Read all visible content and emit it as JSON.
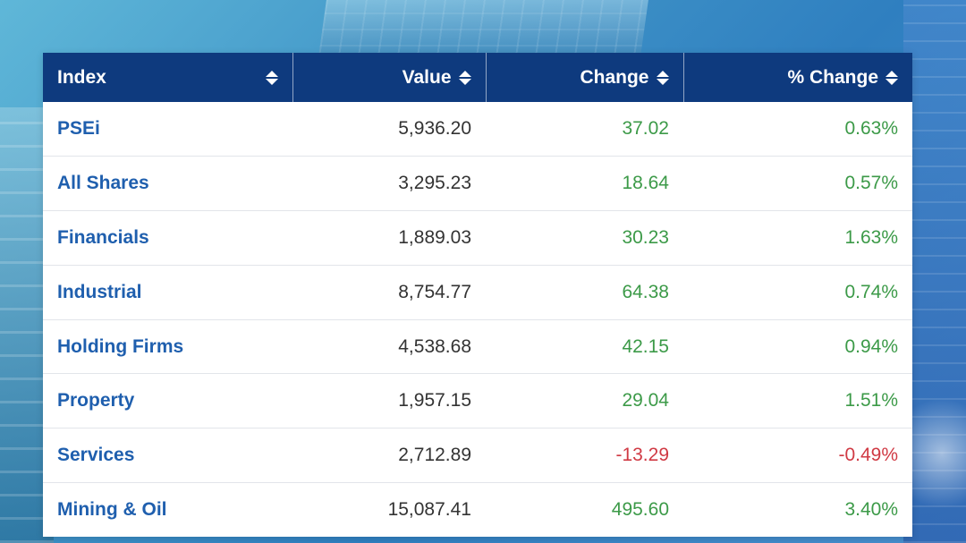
{
  "table": {
    "headers": [
      {
        "label": "Index",
        "align": "left"
      },
      {
        "label": "Value",
        "align": "right"
      },
      {
        "label": "Change",
        "align": "right"
      },
      {
        "label": "% Change",
        "align": "right"
      }
    ],
    "rows": [
      {
        "name": "PSEi",
        "value": "5,936.20",
        "change": "37.02",
        "pct": "0.63%",
        "direction": "up"
      },
      {
        "name": "All Shares",
        "value": "3,295.23",
        "change": "18.64",
        "pct": "0.57%",
        "direction": "up"
      },
      {
        "name": "Financials",
        "value": "1,889.03",
        "change": "30.23",
        "pct": "1.63%",
        "direction": "up"
      },
      {
        "name": "Industrial",
        "value": "8,754.77",
        "change": "64.38",
        "pct": "0.74%",
        "direction": "up"
      },
      {
        "name": "Holding Firms",
        "value": "4,538.68",
        "change": "42.15",
        "pct": "0.94%",
        "direction": "up"
      },
      {
        "name": "Property",
        "value": "1,957.15",
        "change": "29.04",
        "pct": "1.51%",
        "direction": "up"
      },
      {
        "name": "Services",
        "value": "2,712.89",
        "change": "-13.29",
        "pct": "-0.49%",
        "direction": "down"
      },
      {
        "name": "Mining & Oil",
        "value": "15,087.41",
        "change": "495.60",
        "pct": "3.40%",
        "direction": "up"
      }
    ]
  },
  "colors": {
    "header_bg": "#0e3a7e",
    "index_link": "#1f5fae",
    "positive": "#3c9a48",
    "negative": "#d03a44"
  },
  "icons": {
    "sort": "sort-up-down-icon"
  }
}
